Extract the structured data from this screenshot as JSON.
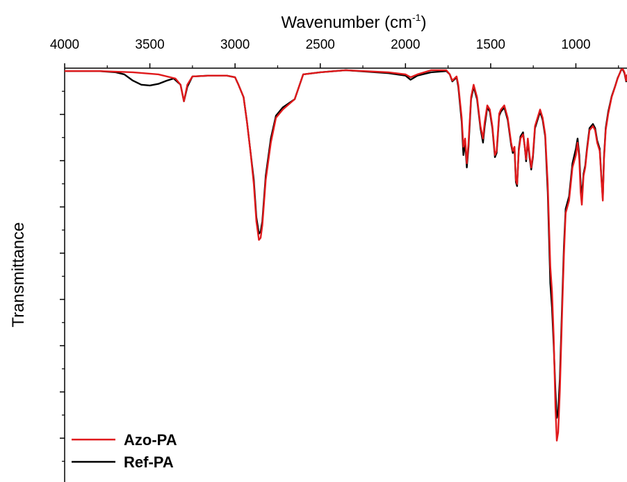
{
  "chart_data": {
    "type": "line",
    "xlabel": "Wavenumber (cm",
    "xlabel_sup": "-1",
    "xlabel_tail": ")",
    "ylabel": "Transmittance",
    "xlim": [
      4000,
      700
    ],
    "ylim": [
      0,
      1
    ],
    "x_ticks": [
      4000,
      3500,
      3000,
      2500,
      2000,
      1500,
      1000
    ],
    "x_axis_position": "top",
    "grid": false,
    "legend_position": "bottom-left",
    "series": [
      {
        "name": "Azo-PA",
        "color": "#e0191b",
        "points": [
          [
            4000,
            0.993
          ],
          [
            3800,
            0.993
          ],
          [
            3600,
            0.99
          ],
          [
            3450,
            0.985
          ],
          [
            3350,
            0.975
          ],
          [
            3320,
            0.96
          ],
          [
            3300,
            0.92
          ],
          [
            3280,
            0.96
          ],
          [
            3250,
            0.98
          ],
          [
            3150,
            0.982
          ],
          [
            3050,
            0.982
          ],
          [
            3000,
            0.978
          ],
          [
            2980,
            0.96
          ],
          [
            2950,
            0.93
          ],
          [
            2930,
            0.87
          ],
          [
            2910,
            0.8
          ],
          [
            2890,
            0.72
          ],
          [
            2875,
            0.63
          ],
          [
            2860,
            0.585
          ],
          [
            2850,
            0.59
          ],
          [
            2840,
            0.62
          ],
          [
            2820,
            0.73
          ],
          [
            2790,
            0.82
          ],
          [
            2760,
            0.88
          ],
          [
            2720,
            0.9
          ],
          [
            2650,
            0.925
          ],
          [
            2600,
            0.985
          ],
          [
            2500,
            0.99
          ],
          [
            2350,
            0.995
          ],
          [
            2100,
            0.99
          ],
          [
            2000,
            0.985
          ],
          [
            1970,
            0.978
          ],
          [
            1930,
            0.985
          ],
          [
            1850,
            0.995
          ],
          [
            1760,
            0.995
          ],
          [
            1740,
            0.985
          ],
          [
            1725,
            0.97
          ],
          [
            1700,
            0.98
          ],
          [
            1690,
            0.96
          ],
          [
            1670,
            0.88
          ],
          [
            1660,
            0.81
          ],
          [
            1650,
            0.83
          ],
          [
            1640,
            0.77
          ],
          [
            1630,
            0.82
          ],
          [
            1615,
            0.93
          ],
          [
            1600,
            0.96
          ],
          [
            1580,
            0.93
          ],
          [
            1560,
            0.86
          ],
          [
            1545,
            0.83
          ],
          [
            1535,
            0.87
          ],
          [
            1520,
            0.91
          ],
          [
            1505,
            0.9
          ],
          [
            1490,
            0.86
          ],
          [
            1475,
            0.79
          ],
          [
            1465,
            0.8
          ],
          [
            1450,
            0.89
          ],
          [
            1440,
            0.9
          ],
          [
            1420,
            0.91
          ],
          [
            1400,
            0.88
          ],
          [
            1380,
            0.82
          ],
          [
            1370,
            0.8
          ],
          [
            1360,
            0.81
          ],
          [
            1352,
            0.73
          ],
          [
            1345,
            0.72
          ],
          [
            1335,
            0.8
          ],
          [
            1325,
            0.83
          ],
          [
            1310,
            0.84
          ],
          [
            1300,
            0.81
          ],
          [
            1292,
            0.78
          ],
          [
            1282,
            0.83
          ],
          [
            1272,
            0.79
          ],
          [
            1262,
            0.76
          ],
          [
            1252,
            0.79
          ],
          [
            1240,
            0.86
          ],
          [
            1225,
            0.88
          ],
          [
            1210,
            0.9
          ],
          [
            1195,
            0.88
          ],
          [
            1180,
            0.84
          ],
          [
            1165,
            0.72
          ],
          [
            1150,
            0.52
          ],
          [
            1140,
            0.46
          ],
          [
            1130,
            0.35
          ],
          [
            1120,
            0.18
          ],
          [
            1112,
            0.1
          ],
          [
            1104,
            0.12
          ],
          [
            1094,
            0.22
          ],
          [
            1080,
            0.42
          ],
          [
            1070,
            0.55
          ],
          [
            1060,
            0.65
          ],
          [
            1040,
            0.68
          ],
          [
            1020,
            0.76
          ],
          [
            1000,
            0.79
          ],
          [
            990,
            0.82
          ],
          [
            980,
            0.78
          ],
          [
            972,
            0.7
          ],
          [
            965,
            0.67
          ],
          [
            955,
            0.74
          ],
          [
            945,
            0.76
          ],
          [
            935,
            0.8
          ],
          [
            920,
            0.85
          ],
          [
            900,
            0.86
          ],
          [
            887,
            0.85
          ],
          [
            875,
            0.82
          ],
          [
            860,
            0.8
          ],
          [
            850,
            0.73
          ],
          [
            842,
            0.68
          ],
          [
            835,
            0.78
          ],
          [
            825,
            0.85
          ],
          [
            810,
            0.89
          ],
          [
            790,
            0.93
          ],
          [
            770,
            0.955
          ],
          [
            755,
            0.975
          ],
          [
            740,
            0.99
          ],
          [
            735,
            0.996
          ],
          [
            725,
            0.998
          ],
          [
            715,
            0.99
          ],
          [
            705,
            0.97
          ],
          [
            700,
            0.985
          ]
        ]
      },
      {
        "name": "Ref-PA",
        "color": "#000000",
        "points": [
          [
            4000,
            0.993
          ],
          [
            3800,
            0.993
          ],
          [
            3700,
            0.99
          ],
          [
            3650,
            0.985
          ],
          [
            3600,
            0.97
          ],
          [
            3550,
            0.96
          ],
          [
            3500,
            0.958
          ],
          [
            3450,
            0.962
          ],
          [
            3400,
            0.97
          ],
          [
            3360,
            0.975
          ],
          [
            3320,
            0.96
          ],
          [
            3300,
            0.92
          ],
          [
            3280,
            0.955
          ],
          [
            3250,
            0.98
          ],
          [
            3150,
            0.982
          ],
          [
            3050,
            0.982
          ],
          [
            3000,
            0.978
          ],
          [
            2980,
            0.96
          ],
          [
            2950,
            0.93
          ],
          [
            2930,
            0.87
          ],
          [
            2910,
            0.8
          ],
          [
            2890,
            0.73
          ],
          [
            2875,
            0.64
          ],
          [
            2860,
            0.6
          ],
          [
            2850,
            0.605
          ],
          [
            2840,
            0.63
          ],
          [
            2820,
            0.74
          ],
          [
            2790,
            0.83
          ],
          [
            2760,
            0.885
          ],
          [
            2720,
            0.905
          ],
          [
            2650,
            0.925
          ],
          [
            2600,
            0.985
          ],
          [
            2500,
            0.99
          ],
          [
            2350,
            0.995
          ],
          [
            2100,
            0.988
          ],
          [
            2000,
            0.982
          ],
          [
            1970,
            0.972
          ],
          [
            1930,
            0.982
          ],
          [
            1850,
            0.99
          ],
          [
            1760,
            0.993
          ],
          [
            1740,
            0.985
          ],
          [
            1725,
            0.968
          ],
          [
            1700,
            0.978
          ],
          [
            1690,
            0.955
          ],
          [
            1670,
            0.87
          ],
          [
            1660,
            0.79
          ],
          [
            1650,
            0.82
          ],
          [
            1640,
            0.76
          ],
          [
            1630,
            0.81
          ],
          [
            1615,
            0.925
          ],
          [
            1600,
            0.955
          ],
          [
            1580,
            0.925
          ],
          [
            1560,
            0.855
          ],
          [
            1545,
            0.82
          ],
          [
            1535,
            0.86
          ],
          [
            1520,
            0.905
          ],
          [
            1505,
            0.895
          ],
          [
            1490,
            0.855
          ],
          [
            1475,
            0.785
          ],
          [
            1465,
            0.795
          ],
          [
            1450,
            0.885
          ],
          [
            1440,
            0.895
          ],
          [
            1420,
            0.905
          ],
          [
            1400,
            0.875
          ],
          [
            1380,
            0.815
          ],
          [
            1370,
            0.795
          ],
          [
            1360,
            0.805
          ],
          [
            1352,
            0.725
          ],
          [
            1345,
            0.715
          ],
          [
            1335,
            0.805
          ],
          [
            1325,
            0.835
          ],
          [
            1310,
            0.845
          ],
          [
            1300,
            0.81
          ],
          [
            1292,
            0.775
          ],
          [
            1282,
            0.825
          ],
          [
            1272,
            0.785
          ],
          [
            1262,
            0.755
          ],
          [
            1252,
            0.785
          ],
          [
            1240,
            0.855
          ],
          [
            1225,
            0.875
          ],
          [
            1210,
            0.895
          ],
          [
            1195,
            0.875
          ],
          [
            1180,
            0.835
          ],
          [
            1165,
            0.7
          ],
          [
            1150,
            0.48
          ],
          [
            1140,
            0.42
          ],
          [
            1130,
            0.33
          ],
          [
            1120,
            0.22
          ],
          [
            1112,
            0.155
          ],
          [
            1104,
            0.17
          ],
          [
            1094,
            0.25
          ],
          [
            1080,
            0.44
          ],
          [
            1070,
            0.57
          ],
          [
            1060,
            0.66
          ],
          [
            1040,
            0.69
          ],
          [
            1020,
            0.77
          ],
          [
            1000,
            0.805
          ],
          [
            990,
            0.83
          ],
          [
            980,
            0.79
          ],
          [
            972,
            0.72
          ],
          [
            965,
            0.69
          ],
          [
            955,
            0.745
          ],
          [
            945,
            0.765
          ],
          [
            935,
            0.805
          ],
          [
            920,
            0.855
          ],
          [
            900,
            0.865
          ],
          [
            887,
            0.855
          ],
          [
            875,
            0.825
          ],
          [
            860,
            0.805
          ],
          [
            850,
            0.735
          ],
          [
            842,
            0.685
          ],
          [
            835,
            0.785
          ],
          [
            825,
            0.855
          ],
          [
            810,
            0.895
          ],
          [
            790,
            0.932
          ],
          [
            770,
            0.956
          ],
          [
            755,
            0.976
          ],
          [
            740,
            0.99
          ],
          [
            735,
            0.995
          ],
          [
            725,
            0.997
          ],
          [
            715,
            0.988
          ],
          [
            705,
            0.968
          ],
          [
            700,
            0.983
          ]
        ]
      }
    ]
  }
}
